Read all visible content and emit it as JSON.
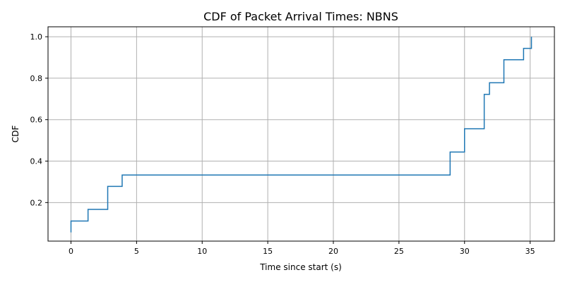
{
  "chart_data": {
    "type": "line",
    "step": "post",
    "title": "CDF of Packet Arrival Times: NBNS",
    "xlabel": "Time since start (s)",
    "ylabel": "CDF",
    "xlim": [
      -1.75,
      36.85
    ],
    "ylim": [
      0.014,
      1.048
    ],
    "xticks": [
      0,
      5,
      10,
      15,
      20,
      25,
      30,
      35
    ],
    "yticks": [
      0.2,
      0.4,
      0.6,
      0.8,
      1.0
    ],
    "xtick_labels": [
      "0",
      "5",
      "10",
      "15",
      "20",
      "25",
      "30",
      "35"
    ],
    "ytick_labels": [
      "0.2",
      "0.4",
      "0.6",
      "0.8",
      "1.0"
    ],
    "grid": true,
    "series": [
      {
        "color": "#1f77b4",
        "x": [
          0,
          0.0,
          1.3,
          2.8,
          3.9,
          28.9,
          30.0,
          31.5,
          31.9,
          33.0,
          33.0,
          34.5,
          35.1
        ],
        "y": [
          0.056,
          0.111,
          0.167,
          0.278,
          0.333,
          0.444,
          0.556,
          0.722,
          0.778,
          0.833,
          0.889,
          0.944,
          1.0
        ]
      }
    ]
  }
}
